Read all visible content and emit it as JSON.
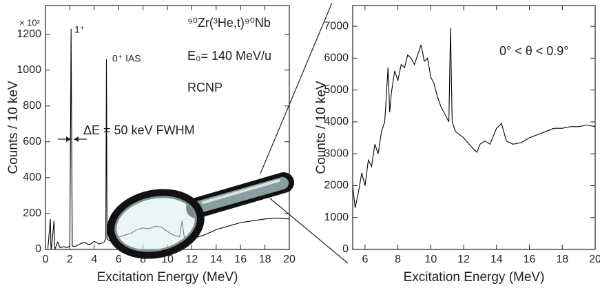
{
  "chart_data": [
    {
      "type": "line",
      "ylabel": "Counts / 10 keV",
      "xlabel": "Excitation Energy (MeV)",
      "ylabel_multiplier": "× 10²",
      "annotations": [
        "1⁺",
        "0⁺ IAS",
        "⁹⁰Zr(³He,t)⁹⁰Nb",
        "E₀= 140 MeV/u",
        "RCNP",
        "ΔE = 50 keV FWHM"
      ],
      "x": [
        0.2,
        0.4,
        0.45,
        0.5,
        0.7,
        0.75,
        0.8,
        1.0,
        1.2,
        1.5,
        1.8,
        2.0,
        2.1,
        2.2,
        2.4,
        2.8,
        3.2,
        3.6,
        4.0,
        4.4,
        4.8,
        4.95,
        5.0,
        5.05,
        5.2,
        5.6,
        6.0,
        6.5,
        7.0,
        7.5,
        8.0,
        8.5,
        9.0,
        9.5,
        10.0,
        10.5,
        11.0,
        11.2,
        11.4,
        12,
        13,
        14,
        15,
        16,
        17,
        18,
        19,
        20
      ],
      "values": [
        5,
        170,
        5,
        10,
        160,
        10,
        5,
        40,
        10,
        15,
        10,
        20,
        1230,
        20,
        15,
        30,
        40,
        25,
        45,
        30,
        40,
        60,
        1060,
        60,
        50,
        45,
        70,
        80,
        90,
        110,
        120,
        115,
        130,
        125,
        100,
        80,
        70,
        160,
        60,
        60,
        80,
        110,
        130,
        150,
        160,
        170,
        175,
        170
      ],
      "color": "#000000",
      "xlim": [
        0,
        20
      ],
      "ylim": [
        0,
        1360
      ],
      "xticks": [
        0,
        2,
        4,
        6,
        8,
        10,
        12,
        14,
        16,
        18,
        20
      ],
      "yticks": [
        0,
        200,
        400,
        600,
        800,
        1000,
        1200
      ]
    },
    {
      "type": "line",
      "ylabel": "Counts / 10 keV",
      "xlabel": "Excitation Energy (MeV)",
      "annotations": [
        "0° < θ <  0.9°"
      ],
      "x": [
        5.25,
        5.4,
        5.6,
        5.8,
        6.0,
        6.2,
        6.4,
        6.6,
        6.8,
        7.0,
        7.2,
        7.4,
        7.5,
        7.6,
        7.8,
        8.0,
        8.2,
        8.4,
        8.6,
        8.8,
        9.0,
        9.2,
        9.4,
        9.5,
        9.6,
        9.8,
        10.0,
        10.2,
        10.4,
        10.6,
        10.8,
        11.0,
        11.1,
        11.2,
        11.3,
        11.5,
        12.0,
        12.5,
        12.8,
        13.0,
        13.3,
        13.6,
        14.0,
        14.3,
        14.6,
        15.0,
        15.5,
        16.0,
        16.5,
        17.0,
        17.5,
        18.0,
        18.5,
        19.0,
        19.5,
        20.0
      ],
      "values": [
        2000,
        1300,
        1800,
        2400,
        2000,
        2800,
        2600,
        3300,
        3000,
        3700,
        4000,
        5700,
        4300,
        4900,
        5600,
        5300,
        5800,
        5700,
        6100,
        6000,
        5800,
        6100,
        6400,
        6200,
        5900,
        6000,
        5400,
        5200,
        4800,
        4500,
        4300,
        4100,
        4000,
        6950,
        4000,
        3700,
        3500,
        3200,
        3050,
        3300,
        3400,
        3300,
        3800,
        3950,
        3400,
        3300,
        3350,
        3500,
        3600,
        3700,
        3800,
        3800,
        3850,
        3850,
        3900,
        3850
      ],
      "color": "#000000",
      "xlim": [
        5.25,
        20
      ],
      "ylim": [
        0,
        7650
      ],
      "xticks": [
        6,
        8,
        10,
        12,
        14,
        16,
        18,
        20
      ],
      "yticks": [
        0,
        1000,
        2000,
        3000,
        4000,
        5000,
        6000,
        7000
      ]
    }
  ]
}
